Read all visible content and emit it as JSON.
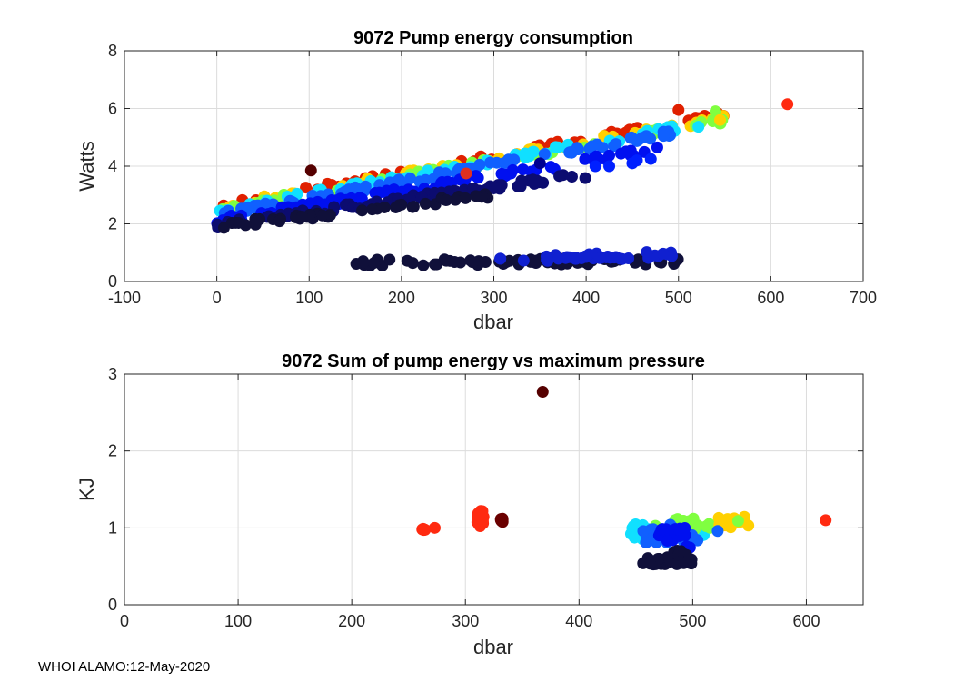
{
  "footer_text": "WHOI ALAMO:12-May-2020",
  "chart_data": [
    {
      "type": "scatter",
      "title": "9072 Pump energy consumption",
      "xlabel": "dbar",
      "ylabel": "Watts",
      "xlim": [
        -100,
        700
      ],
      "ylim": [
        0,
        8
      ],
      "xticks": [
        -100,
        0,
        100,
        200,
        300,
        400,
        500,
        600,
        700
      ],
      "yticks": [
        0,
        2,
        4,
        6,
        8
      ],
      "grid": true,
      "colormap": "jet",
      "bands": [
        {
          "x0": 0,
          "x1": 550,
          "y0": 2.6,
          "y1": 5.8,
          "color": "#e02000",
          "count": 60
        },
        {
          "x0": 0,
          "x1": 550,
          "y0": 2.55,
          "y1": 5.7,
          "color": "#ffd000",
          "count": 50
        },
        {
          "x0": 0,
          "x1": 550,
          "y0": 2.5,
          "y1": 5.6,
          "color": "#80ff40",
          "count": 50
        },
        {
          "x0": 0,
          "x1": 530,
          "y0": 2.45,
          "y1": 5.5,
          "color": "#10e0ff",
          "count": 60
        },
        {
          "x0": 0,
          "x1": 500,
          "y0": 2.3,
          "y1": 5.2,
          "color": "#1060ff",
          "count": 90
        },
        {
          "x0": 0,
          "x1": 480,
          "y0": 2.1,
          "y1": 4.6,
          "color": "#0010f0",
          "count": 90
        },
        {
          "x0": 0,
          "x1": 400,
          "y0": 1.95,
          "y1": 3.7,
          "color": "#0c0c70",
          "count": 80
        },
        {
          "x0": 0,
          "x1": 300,
          "y0": 1.9,
          "y1": 3.0,
          "color": "#10103a",
          "count": 50
        },
        {
          "x0": 150,
          "x1": 500,
          "y0": 0.65,
          "y1": 0.7,
          "color": "#10103a",
          "count": 70
        },
        {
          "x0": 300,
          "x1": 500,
          "y0": 0.75,
          "y1": 0.95,
          "color": "#1020d0",
          "count": 40
        }
      ],
      "points": [
        {
          "x": 102,
          "y": 3.85,
          "color": "#550000"
        },
        {
          "x": 618,
          "y": 6.15,
          "color": "#ff2a10"
        },
        {
          "x": 270,
          "y": 3.75,
          "color": "#e03020"
        },
        {
          "x": 350,
          "y": 4.1,
          "color": "#000090"
        },
        {
          "x": 410,
          "y": 4.0,
          "color": "#0020ff"
        },
        {
          "x": 425,
          "y": 4.0,
          "color": "#0020ff"
        },
        {
          "x": 450,
          "y": 4.1,
          "color": "#0020ff"
        },
        {
          "x": 455,
          "y": 4.2,
          "color": "#0020ff"
        },
        {
          "x": 470,
          "y": 4.25,
          "color": "#0020ff"
        },
        {
          "x": 540,
          "y": 5.9,
          "color": "#80ff40"
        },
        {
          "x": 545,
          "y": 5.6,
          "color": "#ffd000"
        },
        {
          "x": 500,
          "y": 5.95,
          "color": "#e02000"
        }
      ]
    },
    {
      "type": "scatter",
      "title": "9072 Sum of pump energy vs maximum pressure",
      "xlabel": "dbar",
      "ylabel": "KJ",
      "xlim": [
        0,
        650
      ],
      "ylim": [
        0,
        3
      ],
      "xticks": [
        0,
        100,
        200,
        300,
        400,
        500,
        600
      ],
      "yticks": [
        0,
        1,
        2,
        3
      ],
      "grid": true,
      "colormap": "jet",
      "clusters": [
        {
          "x0": 262,
          "x1": 266,
          "y0": 0.96,
          "y1": 0.99,
          "color": "#ff2a10",
          "count": 6
        },
        {
          "x0": 310,
          "x1": 316,
          "y0": 1.02,
          "y1": 1.22,
          "color": "#ff2a10",
          "count": 20
        },
        {
          "x0": 328,
          "x1": 334,
          "y0": 1.06,
          "y1": 1.13,
          "color": "#6a0000",
          "count": 6
        },
        {
          "x0": 445,
          "x1": 510,
          "y0": 0.85,
          "y1": 1.05,
          "color": "#10e0ff",
          "count": 30
        },
        {
          "x0": 460,
          "x1": 520,
          "y0": 0.95,
          "y1": 1.12,
          "color": "#80ff40",
          "count": 20
        },
        {
          "x0": 515,
          "x1": 550,
          "y0": 1.0,
          "y1": 1.15,
          "color": "#ffd000",
          "count": 15
        },
        {
          "x0": 455,
          "x1": 505,
          "y0": 0.8,
          "y1": 1.05,
          "color": "#1060ff",
          "count": 30
        },
        {
          "x0": 470,
          "x1": 500,
          "y0": 0.7,
          "y1": 1.0,
          "color": "#0010f0",
          "count": 20
        },
        {
          "x0": 452,
          "x1": 500,
          "y0": 0.52,
          "y1": 0.62,
          "color": "#10103a",
          "count": 30
        },
        {
          "x0": 480,
          "x1": 495,
          "y0": 0.62,
          "y1": 0.72,
          "color": "#10103a",
          "count": 6
        }
      ],
      "points": [
        {
          "x": 368,
          "y": 2.77,
          "color": "#550000"
        },
        {
          "x": 617,
          "y": 1.1,
          "color": "#ff2a10"
        },
        {
          "x": 273,
          "y": 1.0,
          "color": "#ff2a10"
        },
        {
          "x": 522,
          "y": 0.96,
          "color": "#1060ff"
        },
        {
          "x": 549,
          "y": 1.03,
          "color": "#ffd000"
        },
        {
          "x": 540,
          "y": 1.09,
          "color": "#80ff40"
        }
      ]
    }
  ]
}
